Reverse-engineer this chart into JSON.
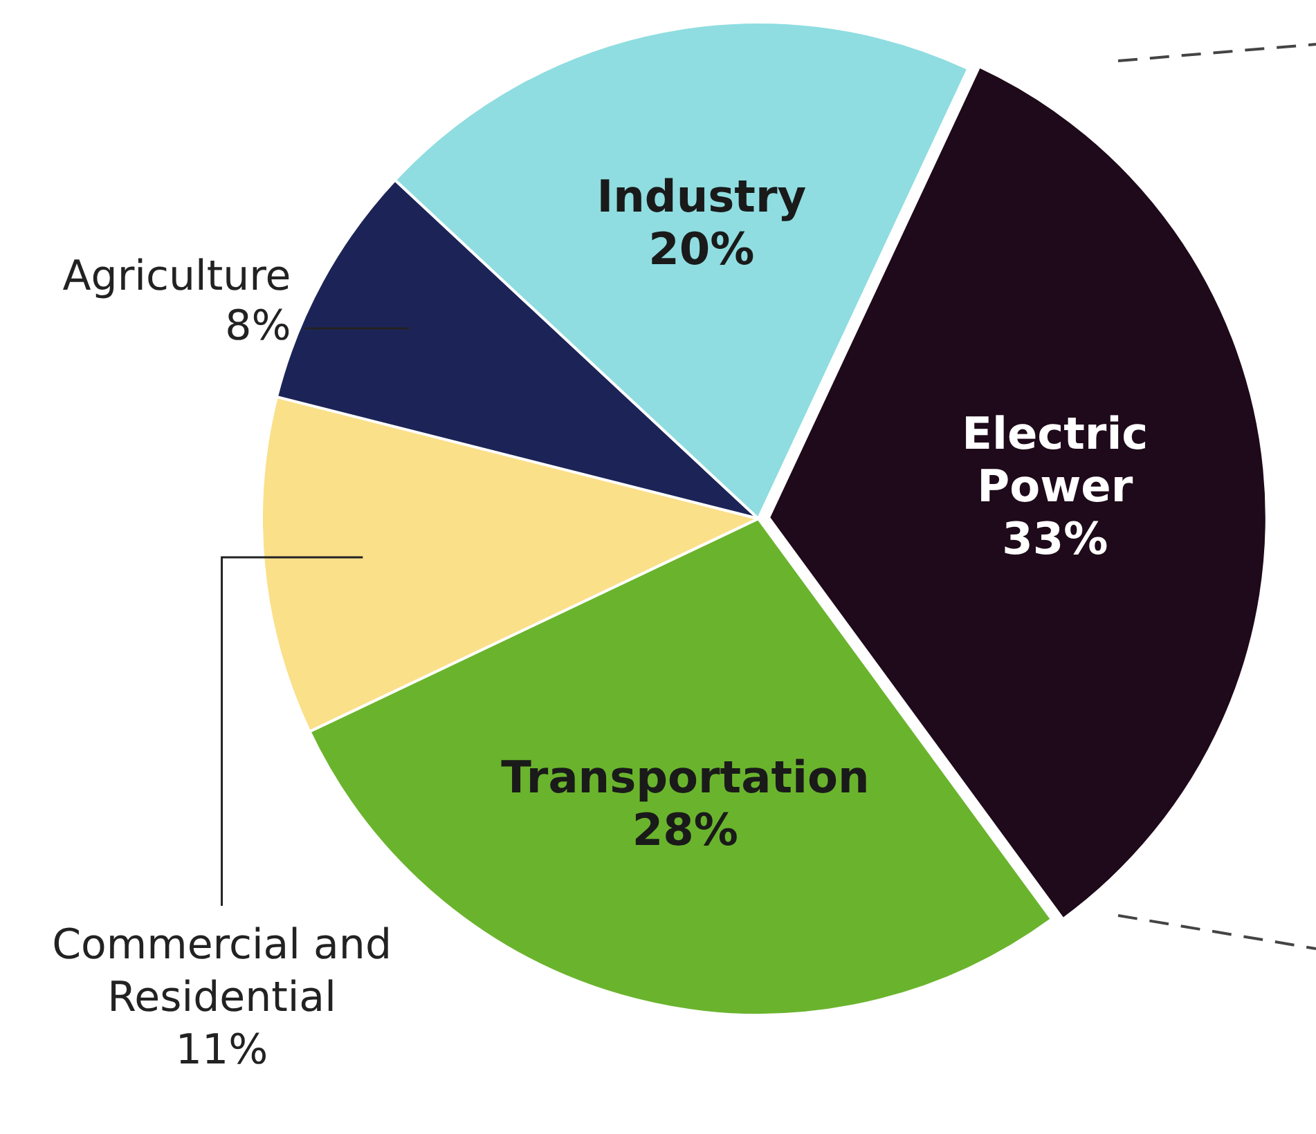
{
  "chart_data": {
    "type": "pie",
    "categories": [
      "Electric Power",
      "Transportation",
      "Commercial and Residential",
      "Agriculture",
      "Industry"
    ],
    "values": [
      33,
      28,
      11,
      8,
      20
    ],
    "value_labels": [
      "33%",
      "28%",
      "11%",
      "8%",
      "20%"
    ],
    "colors": [
      "#1e0a1a",
      "#6ab42d",
      "#fbe08a",
      "#1c2457",
      "#8fdde0"
    ],
    "legend": false
  }
}
